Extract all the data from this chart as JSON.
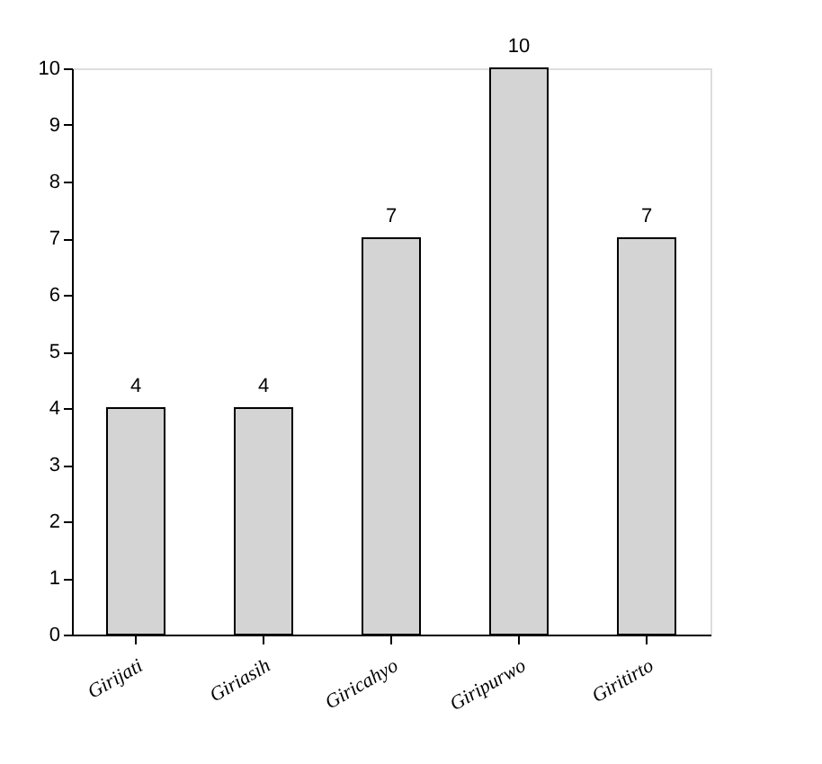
{
  "chart_data": {
    "type": "bar",
    "categories": [
      "Girijati",
      "Giriasih",
      "Giricahyo",
      "Giripurwo",
      "Giritirto"
    ],
    "values": [
      4,
      4,
      7,
      10,
      7
    ],
    "color": "#d4d4d4",
    "ylim": [
      0,
      10
    ],
    "yticks": [
      0,
      1,
      2,
      3,
      4,
      5,
      6,
      7,
      8,
      9,
      10
    ],
    "data_labels": true,
    "grid": false
  }
}
